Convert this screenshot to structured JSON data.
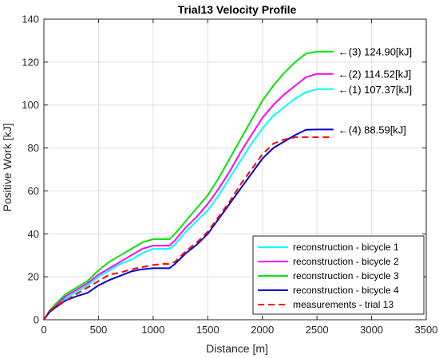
{
  "chart_data": {
    "type": "line",
    "title": "Trial13 Velocity Profile",
    "xlabel": "Distance [m]",
    "ylabel": "Positive Work [kJ]",
    "xlim": [
      0,
      3500
    ],
    "ylim": [
      0,
      140
    ],
    "xticks": [
      0,
      500,
      1000,
      1500,
      2000,
      2500,
      3000,
      3500
    ],
    "yticks": [
      0,
      20,
      40,
      60,
      80,
      100,
      120,
      140
    ],
    "grid": true,
    "legend_position": "bottom-right",
    "series": [
      {
        "name": "reconstruction - bicycle 1",
        "color": "#00FFFF",
        "dash": "solid",
        "x": [
          0,
          50,
          100,
          200,
          300,
          400,
          500,
          600,
          700,
          800,
          900,
          1000,
          1100,
          1150,
          1200,
          1300,
          1400,
          1500,
          1600,
          1700,
          1800,
          1900,
          2000,
          2100,
          2200,
          2300,
          2400,
          2500,
          2650
        ],
        "y": [
          0,
          4,
          6,
          10,
          13,
          16,
          20,
          23,
          26,
          28,
          31,
          33,
          33,
          33,
          35,
          41,
          46,
          51,
          58,
          66,
          74,
          82,
          89,
          95,
          99,
          103,
          106,
          107.4,
          107.4
        ]
      },
      {
        "name": "reconstruction - bicycle 2",
        "color": "#FF00FF",
        "dash": "solid",
        "x": [
          0,
          50,
          100,
          200,
          300,
          400,
          500,
          600,
          700,
          800,
          900,
          1000,
          1100,
          1150,
          1200,
          1300,
          1400,
          1500,
          1600,
          1700,
          1800,
          1900,
          2000,
          2100,
          2200,
          2300,
          2400,
          2500,
          2650
        ],
        "y": [
          0,
          4,
          6,
          11,
          14,
          17,
          21,
          24,
          27,
          30,
          33,
          34.5,
          34.5,
          34.5,
          37,
          43,
          48,
          54,
          61,
          69,
          78,
          86,
          94,
          100,
          105,
          109,
          113,
          114.5,
          114.5
        ]
      },
      {
        "name": "reconstruction - bicycle 3",
        "color": "#00E600",
        "dash": "solid",
        "x": [
          0,
          50,
          100,
          200,
          300,
          400,
          500,
          600,
          700,
          800,
          900,
          1000,
          1100,
          1150,
          1200,
          1300,
          1400,
          1500,
          1600,
          1700,
          1800,
          1900,
          2000,
          2100,
          2200,
          2300,
          2400,
          2500,
          2650
        ],
        "y": [
          0,
          4,
          7,
          12,
          15,
          18,
          23,
          27,
          30,
          33,
          36,
          37.5,
          37.5,
          37.5,
          40,
          46,
          52,
          58,
          66,
          75,
          84,
          93,
          102,
          109,
          115,
          120,
          124,
          124.9,
          124.9
        ]
      },
      {
        "name": "reconstruction - bicycle 4",
        "color": "#0000D6",
        "dash": "solid",
        "x": [
          0,
          50,
          100,
          200,
          300,
          400,
          500,
          600,
          700,
          800,
          900,
          1000,
          1100,
          1150,
          1200,
          1300,
          1400,
          1500,
          1600,
          1700,
          1800,
          1900,
          2000,
          2100,
          2200,
          2300,
          2400,
          2500,
          2650
        ],
        "y": [
          0,
          3.5,
          5.5,
          9,
          11,
          12.5,
          16,
          18.5,
          20.5,
          22.5,
          23.5,
          24,
          24,
          24,
          26,
          31,
          35,
          40,
          47,
          54,
          61,
          68,
          75,
          80,
          83,
          86,
          88.5,
          88.6,
          88.6
        ]
      },
      {
        "name": "measurements - trial 13",
        "color": "#FF0000",
        "dash": "dashed",
        "x": [
          0,
          50,
          100,
          200,
          300,
          400,
          500,
          600,
          700,
          800,
          900,
          1000,
          1100,
          1150,
          1200,
          1300,
          1400,
          1500,
          1600,
          1700,
          1800,
          1900,
          2000,
          2100,
          2200,
          2300,
          2400,
          2500,
          2650
        ],
        "y": [
          0,
          4,
          6,
          9,
          12,
          15,
          18,
          21,
          22,
          23.5,
          24.5,
          25.5,
          26,
          26,
          27,
          32,
          36,
          41,
          48,
          55,
          63,
          70,
          77,
          82,
          84,
          85,
          85,
          85,
          85
        ]
      }
    ],
    "annotations": [
      {
        "text": "←(3) 124.90[kJ]",
        "x": 2650,
        "y": 124.9
      },
      {
        "text": "←(2) 114.52[kJ]",
        "x": 2650,
        "y": 114.5
      },
      {
        "text": "←(1) 107.37[kJ]",
        "x": 2650,
        "y": 107.4
      },
      {
        "text": "←(4) 88.59[kJ]",
        "x": 2650,
        "y": 88.6
      }
    ]
  }
}
